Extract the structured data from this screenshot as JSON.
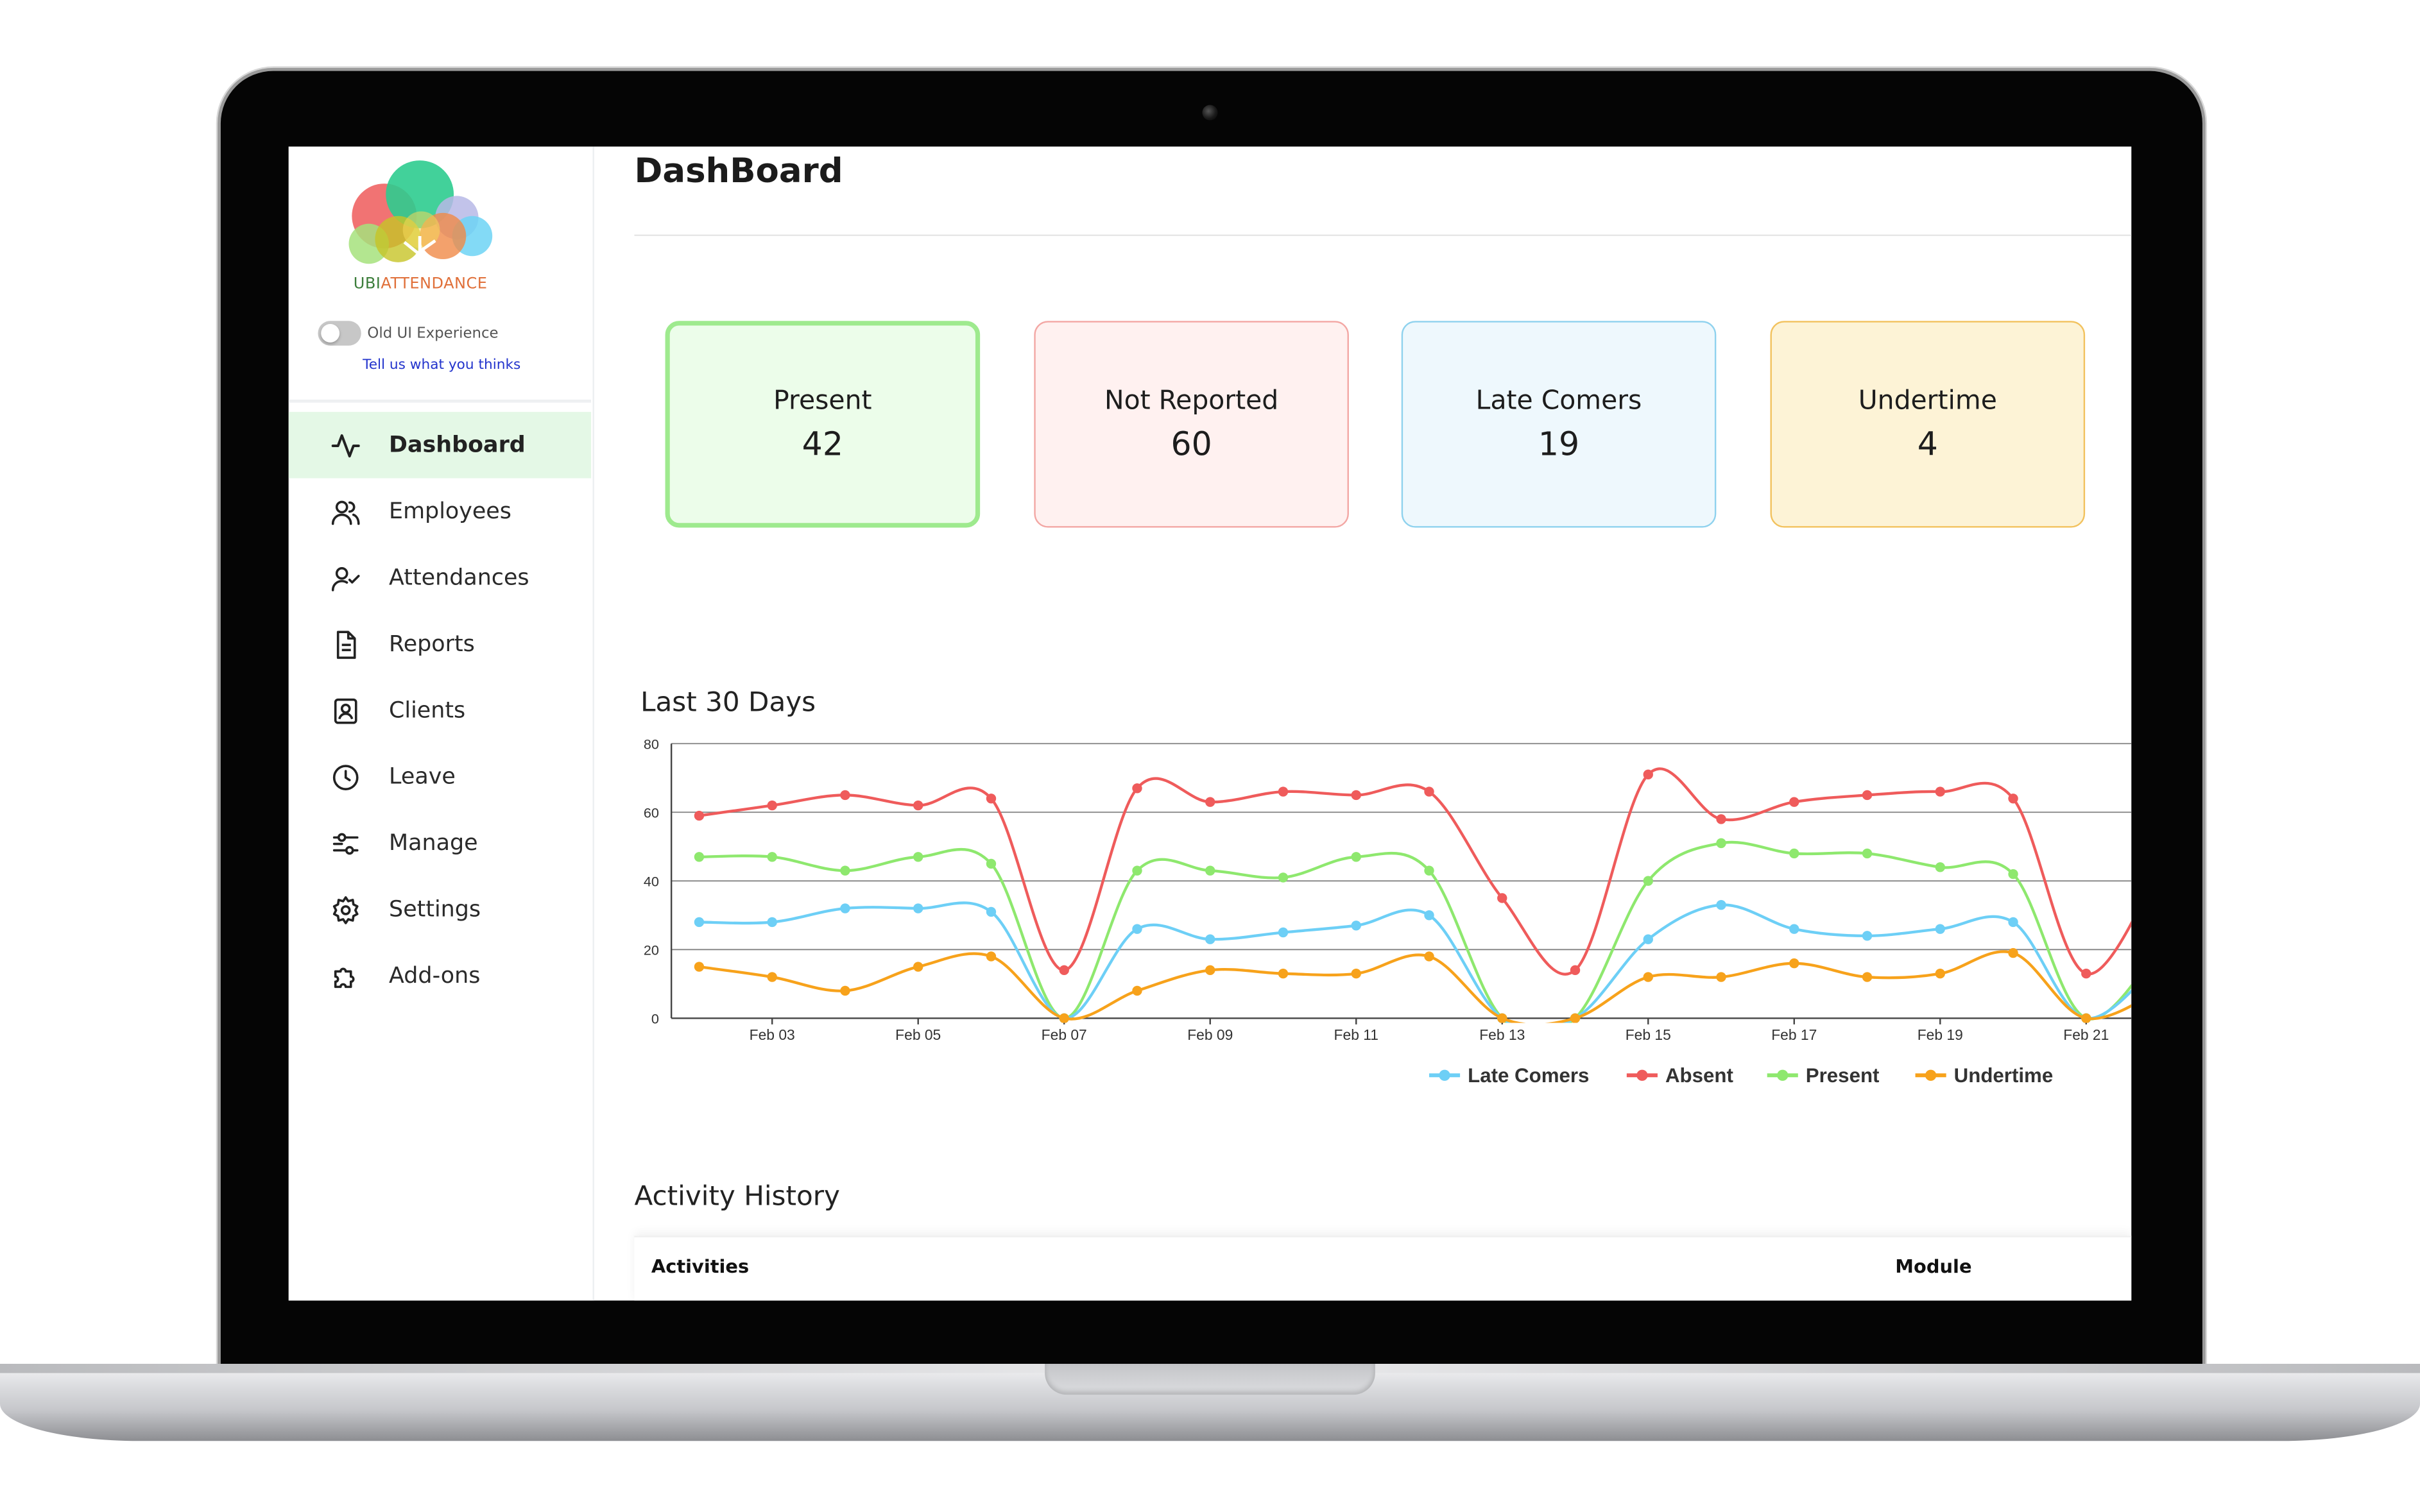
{
  "app": {
    "brand_prefix": "UBI",
    "brand_suffix": "ATTENDANCE",
    "old_ui_toggle_label": "Old UI Experience",
    "feedback_link": "Tell us what you thinks"
  },
  "sidebar": {
    "items": [
      {
        "label": "Dashboard",
        "icon": "activity-icon",
        "active": true
      },
      {
        "label": "Employees",
        "icon": "users-icon"
      },
      {
        "label": "Attendances",
        "icon": "user-check-icon"
      },
      {
        "label": "Reports",
        "icon": "document-icon"
      },
      {
        "label": "Clients",
        "icon": "contact-card-icon"
      },
      {
        "label": "Leave",
        "icon": "clock-icon"
      },
      {
        "label": "Manage",
        "icon": "sliders-icon"
      },
      {
        "label": "Settings",
        "icon": "gear-icon"
      },
      {
        "label": "Add-ons",
        "icon": "puzzle-icon"
      }
    ]
  },
  "page": {
    "title": "DashBoard"
  },
  "cards": [
    {
      "label": "Present",
      "value": "42",
      "border": "#9eea8e",
      "bg": "#ecfdea"
    },
    {
      "label": "Not Reported",
      "value": "60",
      "border": "#f3a7a4",
      "bg": "#fff1f0"
    },
    {
      "label": "Late Comers",
      "value": "19",
      "border": "#8fd2ee",
      "bg": "#eef8fd"
    },
    {
      "label": "Undertime",
      "value": "4",
      "border": "#f2c25e",
      "bg": "#fdf3d6"
    }
  ],
  "chart": {
    "title": "Last 30 Days"
  },
  "chart_data": {
    "type": "line",
    "ylim": [
      0,
      80
    ],
    "yticks": [
      0,
      20,
      40,
      60,
      80
    ],
    "x": [
      "Feb 02",
      "Feb 03",
      "Feb 04",
      "Feb 05",
      "Feb 06",
      "Feb 07",
      "Feb 08",
      "Feb 09",
      "Feb 10",
      "Feb 11",
      "Feb 12",
      "Feb 13",
      "Feb 14",
      "Feb 15",
      "Feb 16",
      "Feb 17",
      "Feb 18",
      "Feb 19",
      "Feb 20",
      "Feb 21"
    ],
    "xtick_labels": [
      "Feb 03",
      "Feb 05",
      "Feb 07",
      "Feb 09",
      "Feb 11",
      "Feb 13",
      "Feb 15",
      "Feb 17",
      "Feb 19",
      "Feb 21"
    ],
    "grid": true,
    "legend_position": "bottom-right",
    "series": [
      {
        "name": "Late Comers",
        "color": "#6dcff6",
        "values": [
          28,
          28,
          32,
          32,
          31,
          0,
          26,
          23,
          25,
          27,
          30,
          0,
          0,
          23,
          33,
          26,
          24,
          26,
          28,
          0
        ]
      },
      {
        "name": "Absent",
        "color": "#ef5b5b",
        "values": [
          59,
          62,
          65,
          62,
          64,
          14,
          67,
          63,
          66,
          65,
          66,
          35,
          14,
          71,
          58,
          63,
          65,
          66,
          64,
          13
        ]
      },
      {
        "name": "Present",
        "color": "#8ee86e",
        "values": [
          47,
          47,
          43,
          47,
          45,
          0,
          43,
          43,
          41,
          47,
          43,
          0,
          0,
          40,
          51,
          48,
          48,
          44,
          42,
          0
        ]
      },
      {
        "name": "Undertime",
        "color": "#f7a21b",
        "values": [
          15,
          12,
          8,
          15,
          18,
          0,
          8,
          14,
          13,
          13,
          18,
          0,
          0,
          12,
          12,
          16,
          12,
          13,
          19,
          0
        ]
      }
    ]
  },
  "activity": {
    "title": "Activity History",
    "columns": [
      "Activities",
      "Module"
    ]
  }
}
